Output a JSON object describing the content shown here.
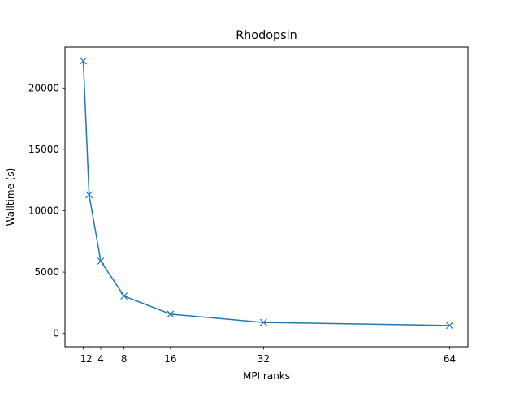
{
  "chart_data": {
    "type": "line",
    "title": "Rhodopsin",
    "xlabel": "MPI ranks",
    "ylabel": "Walltime (s)",
    "x": [
      1,
      2,
      4,
      8,
      16,
      32,
      64
    ],
    "series": [
      {
        "name": "Walltime",
        "values": [
          22200,
          11300,
          5900,
          3050,
          1580,
          900,
          650
        ],
        "color": "#1f77b4",
        "marker": "x"
      }
    ],
    "xticks": [
      1,
      2,
      4,
      8,
      16,
      32,
      64
    ],
    "xtick_labels": [
      "1",
      "2",
      "4",
      "8",
      "16",
      "32",
      "64"
    ],
    "yticks": [
      0,
      5000,
      10000,
      15000,
      20000
    ],
    "ytick_labels": [
      "0",
      "5000",
      "10000",
      "15000",
      "20000"
    ],
    "xlim": [
      -2.15,
      67.15
    ],
    "ylim": [
      -1077,
      23327
    ],
    "grid": false,
    "legend": null
  }
}
